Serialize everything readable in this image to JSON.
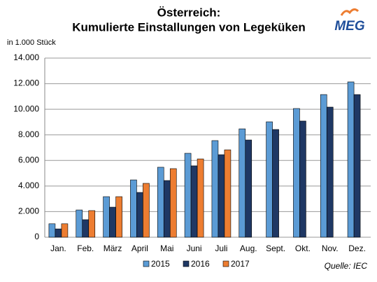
{
  "chart_data": {
    "type": "bar",
    "title": "Österreich:",
    "subtitle": "Kumulierte Einstallungen von Legeküken",
    "y_label": "in  1.000 Stück",
    "source": "Quelle: IEC",
    "logo": "MEG",
    "categories": [
      "Jan.",
      "Feb.",
      "März",
      "April",
      "Mai",
      "Juni",
      "Juli",
      "Aug.",
      "Sept.",
      "Okt.",
      "Nov.",
      "Dez."
    ],
    "series": [
      {
        "name": "2015",
        "color": "#5b9bd5",
        "values": [
          1050,
          2130,
          3170,
          4480,
          5470,
          6560,
          7550,
          8470,
          9020,
          10060,
          11150,
          12140
        ]
      },
      {
        "name": "2016",
        "color": "#1f3864",
        "values": [
          650,
          1370,
          2350,
          3500,
          4430,
          5580,
          6450,
          7600,
          8420,
          9080,
          10170,
          11150
        ]
      },
      {
        "name": "2017",
        "color": "#ed7d31",
        "values": [
          1050,
          2080,
          3170,
          4210,
          5360,
          6120,
          6830,
          null,
          null,
          null,
          null,
          null
        ]
      }
    ],
    "ylim": [
      0,
      14000
    ],
    "yticks": [
      0,
      {
        "value": 2000,
        "label": "2.000"
      },
      {
        "value": 4000,
        "label": "4.000"
      },
      {
        "value": 6000,
        "label": "6.000"
      },
      {
        "value": 8000,
        "label": "8.000"
      },
      {
        "value": 10000,
        "label": "10.000"
      },
      {
        "value": 12000,
        "label": "12.000"
      },
      {
        "value": 14000,
        "label": "14.000"
      }
    ],
    "grid": true,
    "legend": "bottom"
  }
}
